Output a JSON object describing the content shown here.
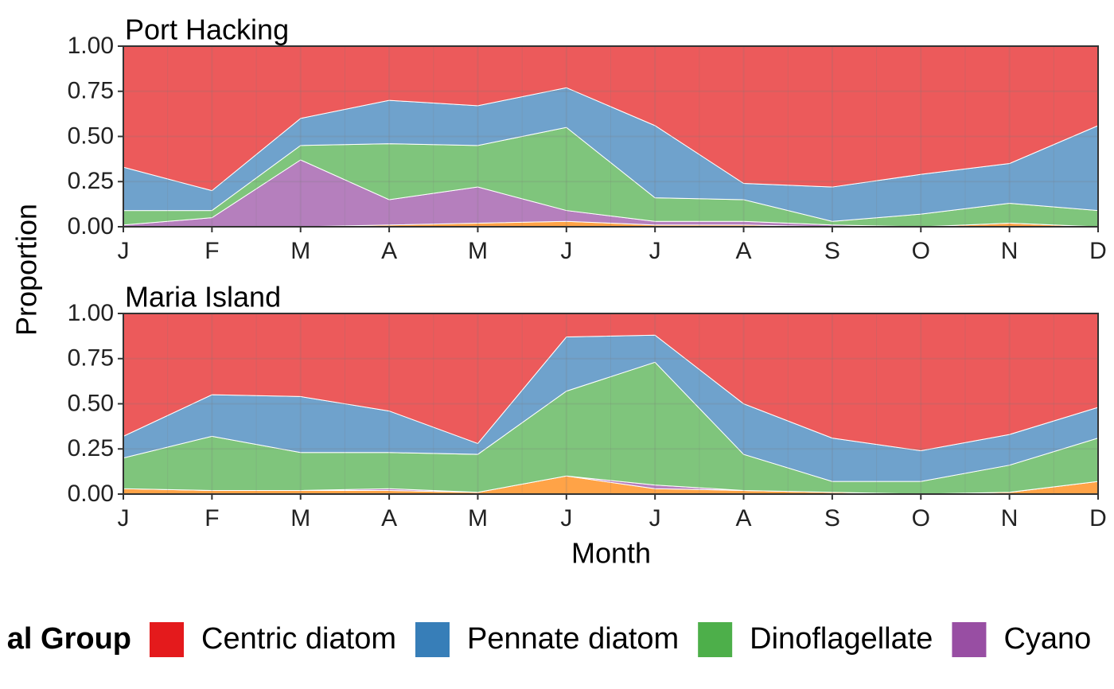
{
  "chart_data": [
    {
      "type": "area",
      "title": "Port Hacking",
      "categories": [
        "J",
        "F",
        "M",
        "A",
        "M",
        "J",
        "J",
        "A",
        "S",
        "O",
        "N",
        "D"
      ],
      "ylim": [
        0,
        1
      ],
      "yticks": [
        {
          "value": 0,
          "label": "0.00"
        },
        {
          "value": 0.25,
          "label": "0.25"
        },
        {
          "value": 0.5,
          "label": "0.50"
        },
        {
          "value": 0.75,
          "label": "0.75"
        },
        {
          "value": 1,
          "label": "1.00"
        }
      ],
      "grid": true,
      "series": [
        {
          "color": "#ff7f00",
          "values": [
            0,
            0,
            0,
            0.01,
            0.02,
            0.03,
            0.01,
            0.01,
            0,
            0,
            0.02,
            0
          ]
        },
        {
          "name": "Cyano",
          "color": "#984ea3",
          "values": [
            0.01,
            0.05,
            0.37,
            0.14,
            0.2,
            0.06,
            0.02,
            0.02,
            0.01,
            0,
            0,
            0
          ]
        },
        {
          "name": "Dinoflagellate",
          "color": "#4daf4a",
          "values": [
            0.08,
            0.04,
            0.08,
            0.31,
            0.23,
            0.46,
            0.13,
            0.12,
            0.02,
            0.07,
            0.11,
            0.09
          ]
        },
        {
          "name": "Pennate diatom",
          "color": "#377eb8",
          "values": [
            0.24,
            0.11,
            0.15,
            0.24,
            0.22,
            0.22,
            0.4,
            0.09,
            0.19,
            0.22,
            0.22,
            0.47
          ]
        },
        {
          "name": "Centric diatom",
          "color": "#e41a1c",
          "values": [
            0.67,
            0.8,
            0.4,
            0.3,
            0.33,
            0.23,
            0.44,
            0.76,
            0.78,
            0.71,
            0.65,
            0.44
          ]
        }
      ]
    },
    {
      "type": "area",
      "title": "Maria Island",
      "categories": [
        "J",
        "F",
        "M",
        "A",
        "M",
        "J",
        "J",
        "A",
        "S",
        "O",
        "N",
        "D"
      ],
      "ylim": [
        0,
        1
      ],
      "yticks": [
        {
          "value": 0,
          "label": "0.00"
        },
        {
          "value": 0.25,
          "label": "0.25"
        },
        {
          "value": 0.5,
          "label": "0.50"
        },
        {
          "value": 0.75,
          "label": "0.75"
        },
        {
          "value": 1,
          "label": "1.00"
        }
      ],
      "grid": true,
      "series": [
        {
          "color": "#ff7f00",
          "values": [
            0.03,
            0.02,
            0.02,
            0.02,
            0.01,
            0.1,
            0.03,
            0.02,
            0.01,
            0,
            0.01,
            0.07
          ]
        },
        {
          "color": "#984ea3",
          "values": [
            0,
            0,
            0,
            0.01,
            0,
            0,
            0.02,
            0,
            0,
            0,
            0,
            0
          ]
        },
        {
          "color": "#4daf4a",
          "values": [
            0.17,
            0.3,
            0.21,
            0.2,
            0.21,
            0.47,
            0.68,
            0.2,
            0.06,
            0.07,
            0.15,
            0.24
          ]
        },
        {
          "color": "#377eb8",
          "values": [
            0.12,
            0.23,
            0.31,
            0.23,
            0.06,
            0.3,
            0.15,
            0.28,
            0.24,
            0.17,
            0.17,
            0.17
          ]
        },
        {
          "color": "#e41a1c",
          "values": [
            0.68,
            0.45,
            0.46,
            0.54,
            0.72,
            0.13,
            0.12,
            0.5,
            0.69,
            0.76,
            0.67,
            0.52
          ]
        }
      ]
    }
  ],
  "shared": {
    "xlabel": "Month",
    "ylabel": "Proportion",
    "legend_title": "al Group"
  }
}
